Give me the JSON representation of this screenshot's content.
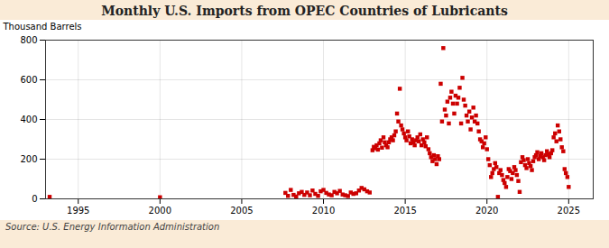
{
  "chart_data": {
    "type": "scatter",
    "title": "Monthly U.S. Imports from OPEC Countries of Lubricants",
    "ylabel": "Thousand Barrels",
    "annotations": [
      "Source: U.S. Energy Information Administration"
    ],
    "color": "#cc0000",
    "marker": "square",
    "grid": true,
    "xlim": [
      1993.0,
      2026.5
    ],
    "xticks": [
      1995,
      2000,
      2005,
      2010,
      2015,
      2020,
      2025
    ],
    "ylim": [
      0,
      800
    ],
    "yticks": [
      0,
      200,
      400,
      600,
      800
    ],
    "x": [
      1993.25,
      2000.0,
      2007.67,
      2007.83,
      2008.0,
      2008.17,
      2008.33,
      2008.5,
      2008.67,
      2008.83,
      2009.0,
      2009.17,
      2009.33,
      2009.5,
      2009.67,
      2009.83,
      2010.0,
      2010.17,
      2010.33,
      2010.5,
      2010.67,
      2010.83,
      2011.0,
      2011.17,
      2011.33,
      2011.5,
      2011.67,
      2011.83,
      2012.0,
      2012.17,
      2012.33,
      2012.5,
      2012.67,
      2012.83,
      2013.0,
      2013.08,
      2013.17,
      2013.25,
      2013.33,
      2013.42,
      2013.5,
      2013.58,
      2013.67,
      2013.75,
      2013.83,
      2013.92,
      2014.0,
      2014.08,
      2014.17,
      2014.25,
      2014.33,
      2014.42,
      2014.5,
      2014.58,
      2014.67,
      2014.75,
      2014.83,
      2014.92,
      2015.0,
      2015.08,
      2015.17,
      2015.25,
      2015.33,
      2015.42,
      2015.5,
      2015.58,
      2015.67,
      2015.75,
      2015.83,
      2015.92,
      2016.0,
      2016.08,
      2016.17,
      2016.25,
      2016.33,
      2016.42,
      2016.5,
      2016.58,
      2016.67,
      2016.75,
      2016.83,
      2016.92,
      2017.0,
      2017.08,
      2017.17,
      2017.25,
      2017.33,
      2017.42,
      2017.5,
      2017.58,
      2017.67,
      2017.75,
      2017.83,
      2017.92,
      2018.0,
      2018.08,
      2018.17,
      2018.25,
      2018.33,
      2018.42,
      2018.5,
      2018.58,
      2018.67,
      2018.75,
      2018.83,
      2018.92,
      2019.0,
      2019.08,
      2019.17,
      2019.25,
      2019.33,
      2019.42,
      2019.5,
      2019.58,
      2019.67,
      2019.75,
      2019.83,
      2019.92,
      2020.0,
      2020.08,
      2020.17,
      2020.25,
      2020.33,
      2020.42,
      2020.5,
      2020.58,
      2020.67,
      2020.75,
      2020.83,
      2020.92,
      2021.0,
      2021.08,
      2021.17,
      2021.25,
      2021.33,
      2021.42,
      2021.5,
      2021.58,
      2021.67,
      2021.75,
      2021.83,
      2021.92,
      2022.0,
      2022.08,
      2022.17,
      2022.25,
      2022.33,
      2022.42,
      2022.5,
      2022.58,
      2022.67,
      2022.75,
      2022.83,
      2022.92,
      2023.0,
      2023.08,
      2023.17,
      2023.25,
      2023.33,
      2023.42,
      2023.5,
      2023.58,
      2023.67,
      2023.75,
      2023.83,
      2023.92,
      2024.0,
      2024.08,
      2024.17,
      2024.25,
      2024.33,
      2024.42,
      2024.5,
      2024.58,
      2024.67,
      2024.75,
      2024.83,
      2024.92,
      2025.0
    ],
    "values": [
      10,
      8,
      30,
      15,
      45,
      20,
      12,
      28,
      35,
      20,
      32,
      18,
      42,
      25,
      15,
      38,
      45,
      30,
      22,
      18,
      35,
      28,
      40,
      22,
      18,
      14,
      32,
      25,
      28,
      42,
      55,
      48,
      38,
      32,
      245,
      262,
      255,
      270,
      248,
      280,
      295,
      258,
      310,
      285,
      270,
      260,
      285,
      300,
      310,
      295,
      320,
      340,
      430,
      390,
      555,
      370,
      350,
      330,
      310,
      295,
      340,
      315,
      280,
      300,
      285,
      270,
      295,
      310,
      290,
      325,
      270,
      300,
      285,
      265,
      310,
      250,
      230,
      210,
      190,
      220,
      200,
      175,
      215,
      200,
      580,
      390,
      760,
      450,
      420,
      490,
      380,
      510,
      540,
      480,
      430,
      520,
      480,
      510,
      560,
      380,
      610,
      500,
      470,
      420,
      390,
      440,
      350,
      410,
      460,
      390,
      420,
      380,
      340,
      300,
      290,
      260,
      280,
      310,
      250,
      200,
      170,
      110,
      130,
      150,
      180,
      160,
      10,
      130,
      145,
      120,
      95,
      80,
      60,
      110,
      150,
      140,
      100,
      130,
      160,
      145,
      120,
      90,
      35,
      185,
      210,
      195,
      170,
      155,
      200,
      180,
      165,
      145,
      190,
      210,
      220,
      235,
      200,
      215,
      230,
      210,
      195,
      220,
      240,
      225,
      210,
      230,
      245,
      310,
      330,
      290,
      370,
      340,
      300,
      260,
      240,
      150,
      130,
      110,
      60
    ]
  }
}
